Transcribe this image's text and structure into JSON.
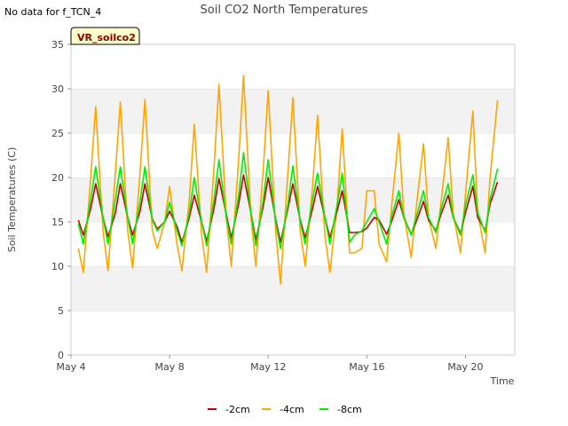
{
  "note": "No data for f_TCN_4",
  "site_label": "VR_soilco2",
  "chart_data": {
    "type": "line",
    "title": "Soil CO2 North Temperatures",
    "xlabel": "Time",
    "ylabel": "Soil Temperatures (C)",
    "ylim": [
      0,
      35
    ],
    "yticks": [
      0,
      5,
      10,
      15,
      20,
      25,
      30,
      35
    ],
    "xlim_days": [
      4,
      22
    ],
    "xticks": [
      {
        "day": 4,
        "label": "May 4"
      },
      {
        "day": 8,
        "label": "May 8"
      },
      {
        "day": 12,
        "label": "May 12"
      },
      {
        "day": 16,
        "label": "May 16"
      },
      {
        "day": 20,
        "label": "May 20"
      }
    ],
    "grid": "horizontal bands",
    "legend_position": "bottom",
    "series": [
      {
        "name": "-2cm",
        "color": "#cc0000",
        "x": [
          4.3,
          4.5,
          4.8,
          5.0,
          5.3,
          5.5,
          5.8,
          6.0,
          6.3,
          6.5,
          6.8,
          7.0,
          7.3,
          7.5,
          7.8,
          8.0,
          8.3,
          8.5,
          8.8,
          9.0,
          9.3,
          9.5,
          9.8,
          10.0,
          10.3,
          10.5,
          10.8,
          11.0,
          11.3,
          11.5,
          11.8,
          12.0,
          12.3,
          12.5,
          12.8,
          13.0,
          13.3,
          13.5,
          13.8,
          14.0,
          14.3,
          14.5,
          14.8,
          15.0,
          15.3,
          15.5,
          15.8,
          16.0,
          16.3,
          16.5,
          16.8,
          17.0,
          17.3,
          17.5,
          17.8,
          18.0,
          18.3,
          18.5,
          18.8,
          19.0,
          19.3,
          19.5,
          19.8,
          20.0,
          20.3,
          20.5,
          20.8,
          21.0,
          21.3
        ],
        "y": [
          15.2,
          13.5,
          16.5,
          19.3,
          15.5,
          13.3,
          16.0,
          19.3,
          15.5,
          13.5,
          16.2,
          19.3,
          15.3,
          14.2,
          15.0,
          16.2,
          14.5,
          12.7,
          15.5,
          18.0,
          15.0,
          12.8,
          16.5,
          19.9,
          15.8,
          13.2,
          17.0,
          20.3,
          16.0,
          13.0,
          16.8,
          20.0,
          15.3,
          12.7,
          16.5,
          19.3,
          15.2,
          13.2,
          16.5,
          19.0,
          15.5,
          13.2,
          16.3,
          18.5,
          13.8,
          13.8,
          13.9,
          14.3,
          15.5,
          15.2,
          13.6,
          15.0,
          17.5,
          15.5,
          13.6,
          15.0,
          17.3,
          15.2,
          14.0,
          15.8,
          18.0,
          15.5,
          13.7,
          16.0,
          19.0,
          15.5,
          14.0,
          17.0,
          19.5
        ]
      },
      {
        "name": "-4cm",
        "color": "#ffa500",
        "x": [
          4.3,
          4.5,
          4.8,
          5.0,
          5.3,
          5.5,
          5.8,
          6.0,
          6.3,
          6.5,
          6.8,
          7.0,
          7.3,
          7.5,
          7.8,
          8.0,
          8.3,
          8.5,
          8.8,
          9.0,
          9.3,
          9.5,
          9.8,
          10.0,
          10.3,
          10.5,
          10.8,
          11.0,
          11.3,
          11.5,
          11.8,
          12.0,
          12.3,
          12.5,
          12.8,
          13.0,
          13.3,
          13.5,
          13.8,
          14.0,
          14.3,
          14.5,
          14.8,
          15.0,
          15.3,
          15.5,
          15.8,
          16.0,
          16.3,
          16.5,
          16.8,
          17.0,
          17.3,
          17.5,
          17.8,
          18.0,
          18.3,
          18.5,
          18.8,
          19.0,
          19.3,
          19.5,
          19.8,
          20.0,
          20.3,
          20.5,
          20.8,
          21.0,
          21.3
        ],
        "y": [
          12.0,
          9.3,
          20.0,
          28.0,
          14.0,
          9.5,
          20.5,
          28.5,
          14.0,
          9.8,
          20.5,
          28.8,
          14.0,
          12.0,
          15.0,
          19.0,
          12.5,
          9.5,
          17.5,
          26.0,
          13.5,
          9.3,
          21.0,
          30.5,
          15.5,
          10.0,
          22.0,
          31.5,
          15.5,
          10.0,
          21.0,
          29.8,
          14.0,
          8.0,
          20.5,
          29.0,
          14.0,
          10.0,
          19.0,
          27.0,
          13.5,
          9.3,
          17.0,
          25.5,
          11.5,
          11.5,
          12.0,
          18.5,
          18.5,
          12.5,
          10.5,
          16.5,
          25.0,
          16.0,
          11.0,
          16.5,
          23.8,
          15.5,
          12.0,
          17.0,
          24.5,
          16.0,
          11.5,
          18.0,
          27.5,
          16.0,
          11.5,
          20.0,
          28.7
        ]
      },
      {
        "name": "-8cm",
        "color": "#00ee00",
        "x": [
          4.3,
          4.5,
          4.8,
          5.0,
          5.3,
          5.5,
          5.8,
          6.0,
          6.3,
          6.5,
          6.8,
          7.0,
          7.3,
          7.5,
          7.8,
          8.0,
          8.3,
          8.5,
          8.8,
          9.0,
          9.3,
          9.5,
          9.8,
          10.0,
          10.3,
          10.5,
          10.8,
          11.0,
          11.3,
          11.5,
          11.8,
          12.0,
          12.3,
          12.5,
          12.8,
          13.0,
          13.3,
          13.5,
          13.8,
          14.0,
          14.3,
          14.5,
          14.8,
          15.0,
          15.3,
          15.5,
          15.8,
          16.0,
          16.3,
          16.5,
          16.8,
          17.0,
          17.3,
          17.5,
          17.8,
          18.0,
          18.3,
          18.5,
          18.8,
          19.0,
          19.3,
          19.5,
          19.8,
          20.0,
          20.3,
          20.5,
          20.8,
          21.0,
          21.3
        ],
        "y": [
          14.8,
          12.5,
          17.5,
          21.2,
          15.5,
          12.5,
          17.5,
          21.2,
          15.5,
          12.5,
          17.3,
          21.2,
          15.2,
          14.0,
          15.0,
          17.2,
          14.0,
          12.3,
          16.0,
          20.0,
          15.0,
          12.3,
          17.5,
          22.0,
          15.5,
          12.5,
          18.0,
          22.8,
          16.0,
          12.3,
          17.5,
          22.0,
          15.0,
          12.0,
          17.0,
          21.3,
          15.0,
          12.5,
          17.5,
          20.5,
          15.5,
          12.5,
          17.0,
          20.5,
          12.7,
          13.5,
          14.0,
          15.0,
          16.5,
          15.0,
          12.5,
          15.5,
          18.5,
          15.5,
          13.5,
          15.5,
          18.5,
          15.5,
          13.8,
          16.3,
          19.3,
          15.5,
          13.5,
          16.8,
          20.3,
          16.0,
          13.8,
          17.5,
          21.0
        ]
      }
    ]
  }
}
